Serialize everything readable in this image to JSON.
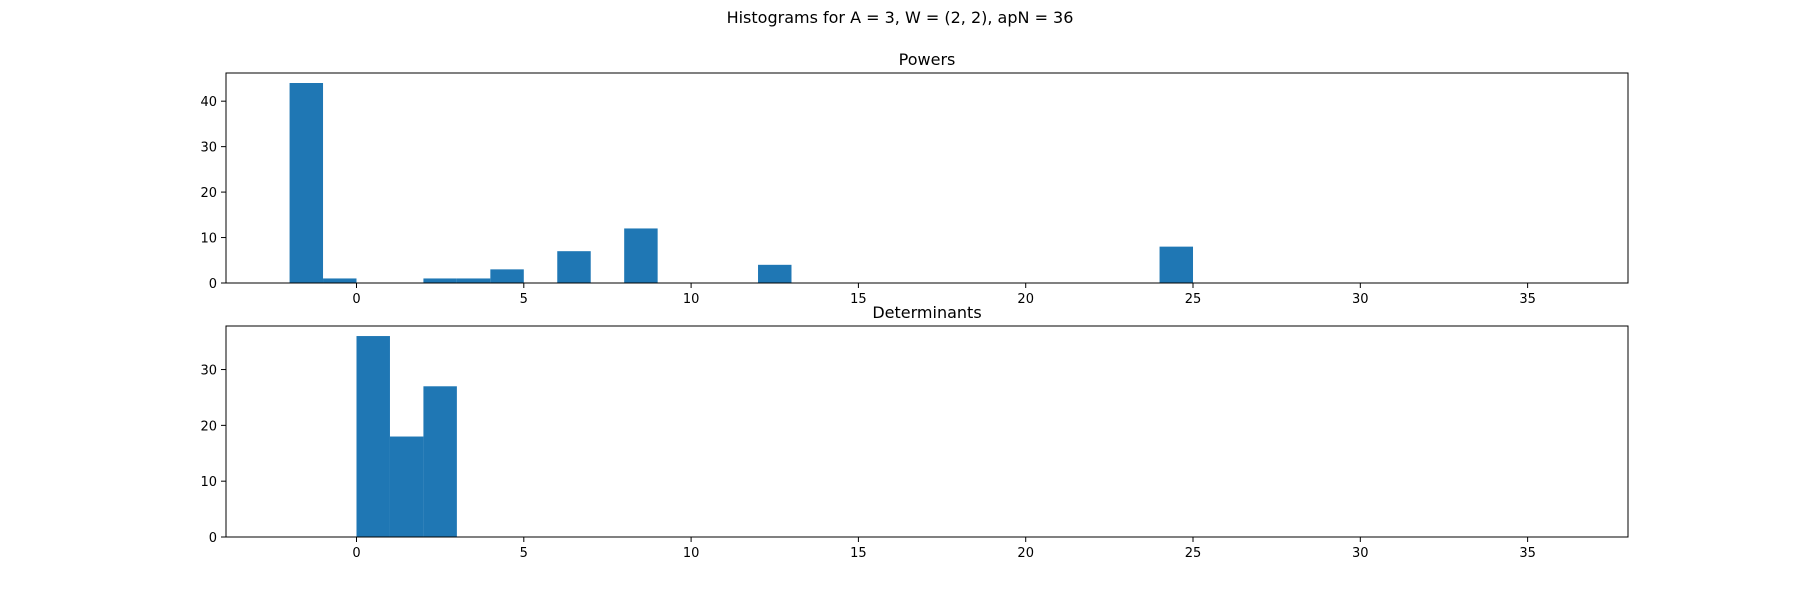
{
  "figure": {
    "title": "Histograms for A = 3, W = (2, 2), apN = 36",
    "bar_color": "#1f77b4"
  },
  "chart_data": [
    {
      "type": "bar",
      "title": "Powers",
      "xlim": [
        -3.9,
        38
      ],
      "ylim": [
        0,
        46.2
      ],
      "xticks": [
        0,
        5,
        10,
        15,
        20,
        25,
        30,
        35
      ],
      "yticks": [
        0,
        10,
        20,
        30,
        40
      ],
      "bins": [
        {
          "x0": -2,
          "x1": -1,
          "count": 44
        },
        {
          "x0": -1,
          "x1": 0,
          "count": 1
        },
        {
          "x0": 2,
          "x1": 3,
          "count": 1
        },
        {
          "x0": 3,
          "x1": 4,
          "count": 1
        },
        {
          "x0": 4,
          "x1": 5,
          "count": 3
        },
        {
          "x0": 6,
          "x1": 7,
          "count": 7
        },
        {
          "x0": 8,
          "x1": 9,
          "count": 12
        },
        {
          "x0": 12,
          "x1": 13,
          "count": 4
        },
        {
          "x0": 24,
          "x1": 25,
          "count": 8
        }
      ]
    },
    {
      "type": "bar",
      "title": "Determinants",
      "xlim": [
        -3.9,
        38
      ],
      "ylim": [
        0,
        37.8
      ],
      "xticks": [
        0,
        5,
        10,
        15,
        20,
        25,
        30,
        35
      ],
      "yticks": [
        0,
        10,
        20,
        30
      ],
      "bins": [
        {
          "x0": 0,
          "x1": 1,
          "count": 36
        },
        {
          "x0": 1,
          "x1": 2,
          "count": 18
        },
        {
          "x0": 2,
          "x1": 3,
          "count": 27
        }
      ]
    }
  ]
}
